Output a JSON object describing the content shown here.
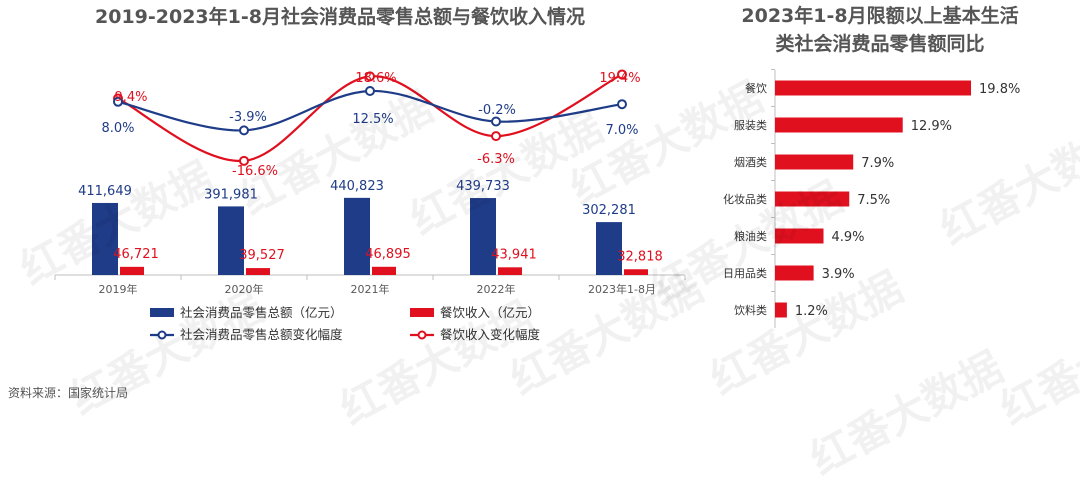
{
  "source": "资料来源：国家统计局",
  "watermark": "红番大数据",
  "chart_data": [
    {
      "type": "bar",
      "title": "2019-2023年1-8月社会消费品零售总额与餐饮收入情况",
      "categories": [
        "2019年",
        "2020年",
        "2021年",
        "2022年",
        "2023年1-8月"
      ],
      "series": [
        {
          "name": "社会消费品零售总额（亿元）",
          "kind": "bar",
          "color": "#1f3c88",
          "values": [
            411649,
            391981,
            440823,
            439733,
            302281
          ],
          "labels": [
            "411,649",
            "391,981",
            "440,823",
            "439,733",
            "302,281"
          ]
        },
        {
          "name": "餐饮收入（亿元）",
          "kind": "bar",
          "color": "#e0101f",
          "values": [
            46721,
            39527,
            46895,
            43941,
            32818
          ],
          "labels": [
            "46,721",
            "39,527",
            "46,895",
            "43,941",
            "32,818"
          ]
        },
        {
          "name": "社会消费品零售总额变化幅度",
          "kind": "line",
          "color": "#1f3c88",
          "values": [
            8.0,
            -3.9,
            12.5,
            -0.2,
            7.0
          ],
          "labels": [
            "8.0%",
            "-3.9%",
            "12.5%",
            "-0.2%",
            "7.0%"
          ]
        },
        {
          "name": "餐饮收入变化幅度",
          "kind": "line",
          "color": "#e0101f",
          "values": [
            9.4,
            -16.6,
            18.6,
            -6.3,
            19.4
          ],
          "labels": [
            "9.4%",
            "-16.6%",
            "18.6%",
            "-6.3%",
            "19.4%"
          ]
        }
      ],
      "ylim_bar": [
        0,
        1000000
      ],
      "ylim_line": [
        -25,
        25
      ],
      "legend": "bottom"
    },
    {
      "type": "bar",
      "orientation": "horizontal",
      "title": "2023年1-8月限额以上基本生活类社会消费品零售额同比",
      "title_lines": [
        "2023年1-8月限额以上基本生活",
        "类社会消费品零售额同比"
      ],
      "categories": [
        "餐饮",
        "服装类",
        "烟酒类",
        "化妆品类",
        "粮油类",
        "日用品类",
        "饮料类"
      ],
      "values": [
        19.8,
        12.9,
        7.9,
        7.5,
        4.9,
        3.9,
        1.2
      ],
      "labels": [
        "19.8%",
        "12.9%",
        "7.9%",
        "7.5%",
        "4.9%",
        "3.9%",
        "1.2%"
      ],
      "color": "#e0101f",
      "xlim": [
        0,
        20
      ]
    }
  ]
}
